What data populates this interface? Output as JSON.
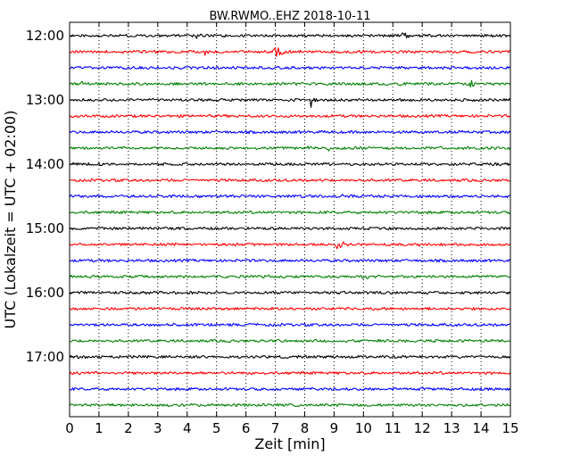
{
  "chart_data": {
    "type": "line",
    "title": "BW.RWMO..EHZ 2018-10-11",
    "xlabel": "Zeit  [min]",
    "ylabel": "UTC (Lokalzeit = UTC + 02:00)",
    "xlim": [
      0,
      15
    ],
    "x_ticks": [
      "0",
      "1",
      "2",
      "3",
      "4",
      "5",
      "6",
      "7",
      "8",
      "9",
      "10",
      "11",
      "12",
      "13",
      "14",
      "15"
    ],
    "y_tick_labels": [
      "12:00",
      "13:00",
      "14:00",
      "15:00",
      "16:00",
      "17:00"
    ],
    "grid": "vertical dotted",
    "trace_interval_min": 15,
    "color_cycle": [
      "#000000",
      "#ff0000",
      "#0000ff",
      "#008000"
    ],
    "traces": [
      {
        "start": "12:00",
        "color": "#000000",
        "events": [
          {
            "t": 4.3,
            "amp": 0.5
          },
          {
            "t": 11.3,
            "amp": 0.5
          }
        ]
      },
      {
        "start": "12:15",
        "color": "#ff0000",
        "events": [
          {
            "t": 7.0,
            "amp": 1.3
          },
          {
            "t": 4.6,
            "amp": 0.3
          },
          {
            "t": 10.0,
            "amp": 0.3
          }
        ]
      },
      {
        "start": "12:30",
        "color": "#0000ff",
        "events": []
      },
      {
        "start": "12:45",
        "color": "#008000",
        "events": [
          {
            "t": 13.6,
            "amp": 0.8
          },
          {
            "t": 0.4,
            "amp": 0.3
          }
        ]
      },
      {
        "start": "13:00",
        "color": "#000000",
        "events": [
          {
            "t": 8.2,
            "amp": 0.7
          }
        ]
      },
      {
        "start": "13:15",
        "color": "#ff0000",
        "events": []
      },
      {
        "start": "13:30",
        "color": "#0000ff",
        "events": []
      },
      {
        "start": "13:45",
        "color": "#008000",
        "events": [
          {
            "t": 8.0,
            "amp": 0.3
          },
          {
            "t": 8.8,
            "amp": 0.3
          }
        ]
      },
      {
        "start": "14:00",
        "color": "#000000",
        "events": [
          {
            "t": 1.0,
            "amp": 0.3
          }
        ]
      },
      {
        "start": "14:15",
        "color": "#ff0000",
        "events": []
      },
      {
        "start": "14:30",
        "color": "#0000ff",
        "events": [
          {
            "t": 9.3,
            "amp": 0.3
          },
          {
            "t": 12.4,
            "amp": 0.3
          }
        ]
      },
      {
        "start": "14:45",
        "color": "#008000",
        "events": []
      },
      {
        "start": "15:00",
        "color": "#000000",
        "events": [
          {
            "t": 3.0,
            "amp": 0.3
          }
        ]
      },
      {
        "start": "15:15",
        "color": "#ff0000",
        "events": [
          {
            "t": 9.1,
            "amp": 1.1
          },
          {
            "t": 11.9,
            "amp": 0.25
          }
        ]
      },
      {
        "start": "15:30",
        "color": "#0000ff",
        "events": []
      },
      {
        "start": "15:45",
        "color": "#008000",
        "events": [
          {
            "t": 10.0,
            "amp": 0.5
          }
        ]
      },
      {
        "start": "16:00",
        "color": "#000000",
        "events": []
      },
      {
        "start": "16:15",
        "color": "#ff0000",
        "events": []
      },
      {
        "start": "16:30",
        "color": "#0000ff",
        "events": []
      },
      {
        "start": "16:45",
        "color": "#008000",
        "events": []
      },
      {
        "start": "17:00",
        "color": "#000000",
        "events": []
      },
      {
        "start": "17:15",
        "color": "#ff0000",
        "events": []
      },
      {
        "start": "17:30",
        "color": "#0000ff",
        "events": []
      },
      {
        "start": "17:45",
        "color": "#008000",
        "events": []
      }
    ]
  }
}
